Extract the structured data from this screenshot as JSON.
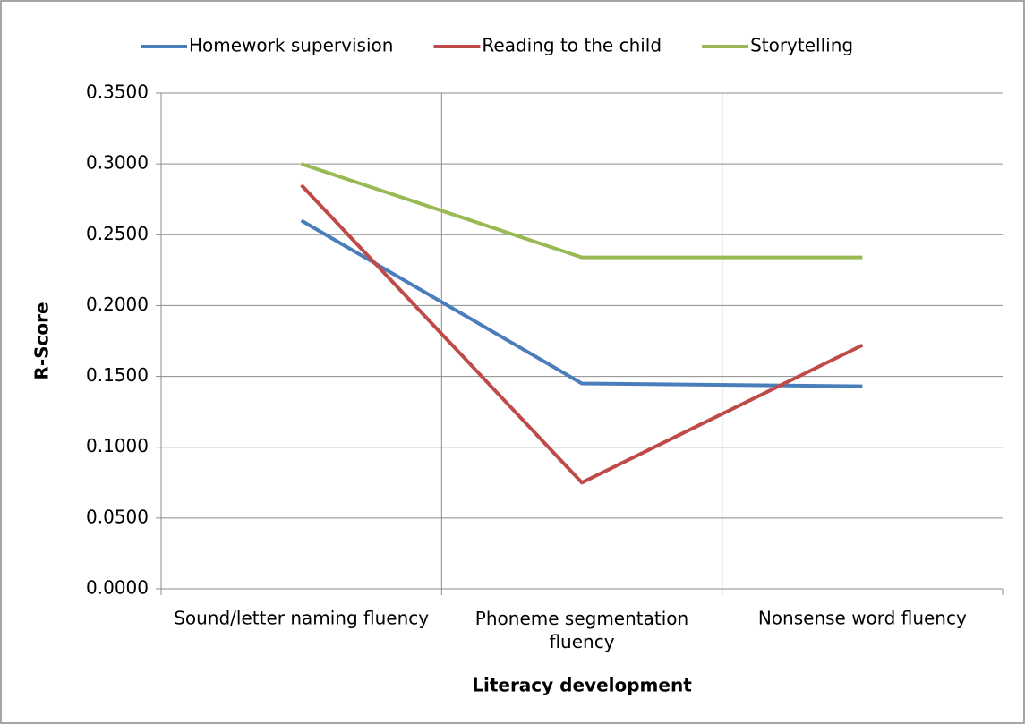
{
  "chart_data": {
    "type": "line",
    "categories": [
      "Sound/letter naming fluency",
      "Phoneme segmentation fluency",
      "Nonsense word fluency"
    ],
    "series": [
      {
        "name": "Homework supervision",
        "color": "#4a7ebb",
        "values": [
          0.26,
          0.145,
          0.143
        ]
      },
      {
        "name": "Reading to the child",
        "color": "#be4b48",
        "values": [
          0.285,
          0.075,
          0.172
        ]
      },
      {
        "name": "Storytelling",
        "color": "#98b954",
        "values": [
          0.3,
          0.234,
          0.234
        ]
      }
    ],
    "ylim": [
      0,
      0.35
    ],
    "yticks": [
      {
        "value": 0,
        "label": "0.0000"
      },
      {
        "value": 0.05,
        "label": "0.0500"
      },
      {
        "value": 0.1,
        "label": "0.1000"
      },
      {
        "value": 0.15,
        "label": "0.1500"
      },
      {
        "value": 0.2,
        "label": "0.2000"
      },
      {
        "value": 0.25,
        "label": "0.2500"
      },
      {
        "value": 0.3,
        "label": "0.3000"
      },
      {
        "value": 0.35,
        "label": "0.3500"
      }
    ],
    "y_label": "R-Score",
    "x_label": "Literacy development",
    "grid": true,
    "legend": "top"
  }
}
